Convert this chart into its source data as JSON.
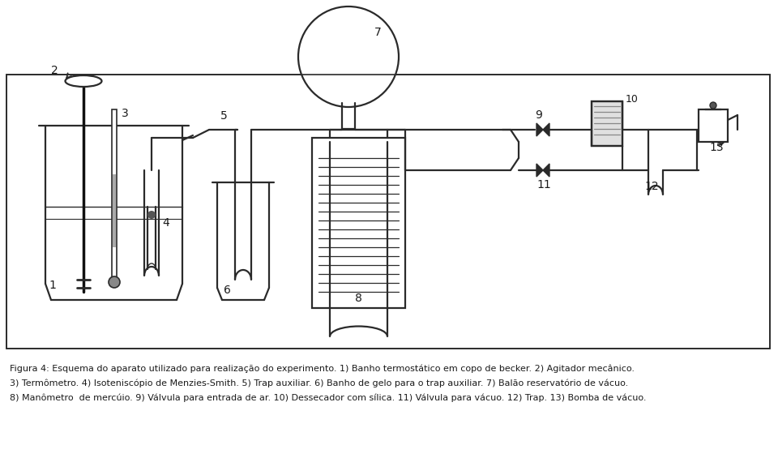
{
  "bg_color": "#ffffff",
  "line_color": "#2a2a2a",
  "text_color": "#1a1a1a",
  "caption_line1": "Figura 4: Esquema do aparato utilizado para realização do experimento. 1) Banho termostático em copo de becker. 2) Agitador mecânico.",
  "caption_line2": "3) Termômetro. 4) Isoteniscópio de Menzies-Smith. 5) Trap auxiliar. 6) Banho de gelo para o trap auxiliar. 7) Balão reservatório de vácuo.",
  "caption_line3": "8) Manômetro  de mercúio. 9) Válvula para entrada de ar. 10) Dessecador com sílica. 11) Válvula para vácuo. 12) Trap. 13) Bomba de vácuo.",
  "lw": 1.6
}
